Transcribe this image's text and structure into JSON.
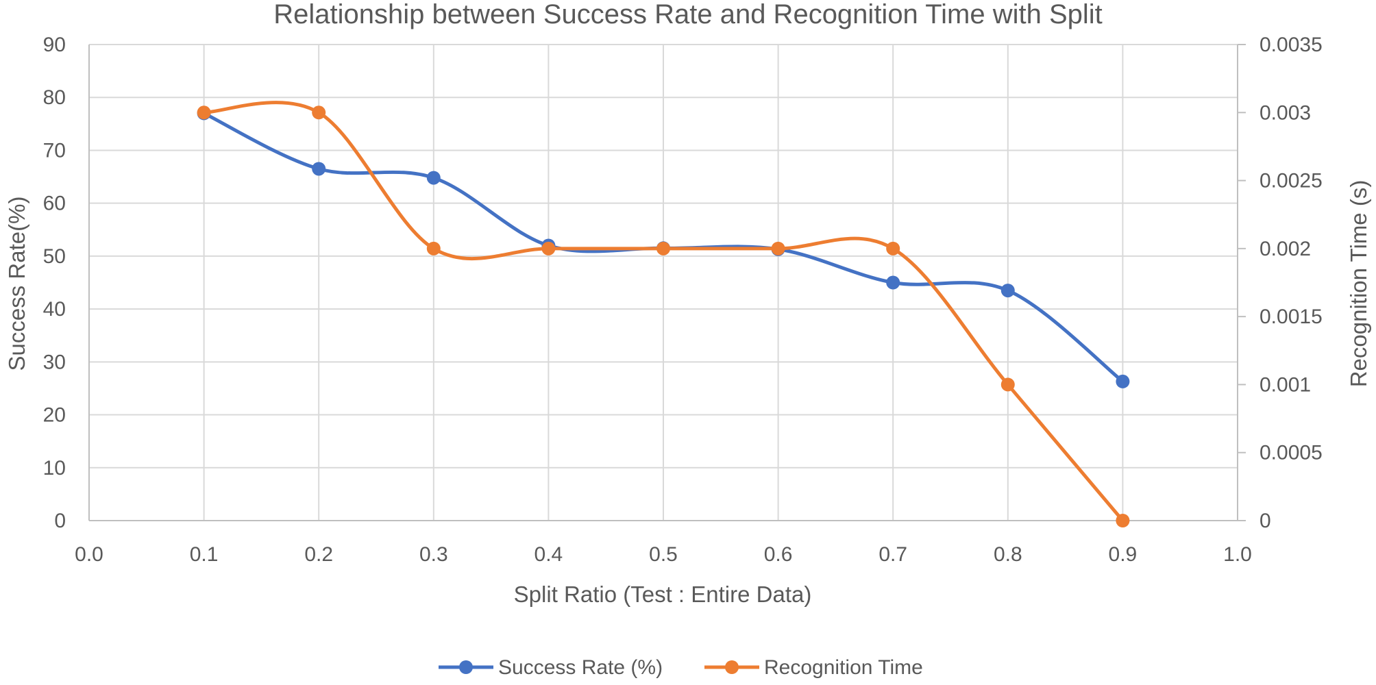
{
  "chart_data": {
    "type": "line",
    "title": "Relationship between Success Rate and Recognition Time with Split",
    "xlabel": "Split Ratio (Test : Entire Data)",
    "ylabel": "Success Rate(%)",
    "y2label": "Recognition Time (s)",
    "x": [
      0.1,
      0.2,
      0.3,
      0.4,
      0.5,
      0.6,
      0.7,
      0.8,
      0.9
    ],
    "xlim": [
      0.0,
      1.0
    ],
    "ylim": [
      0,
      90
    ],
    "y2lim": [
      0,
      0.0035
    ],
    "x_ticks": [
      "0.0",
      "0.1",
      "0.2",
      "0.3",
      "0.4",
      "0.5",
      "0.6",
      "0.7",
      "0.8",
      "0.9",
      "1.0"
    ],
    "y_ticks": [
      "0",
      "10",
      "20",
      "30",
      "40",
      "50",
      "60",
      "70",
      "80",
      "90"
    ],
    "y2_ticks": [
      "0",
      "0.0005",
      "0.001",
      "0.0015",
      "0.002",
      "0.0025",
      "0.003",
      "0.0035"
    ],
    "grid": true,
    "smooth": true,
    "legend_position": "bottom",
    "series": [
      {
        "name": "Success Rate (%)",
        "axis": "left",
        "color": "#4472C4",
        "values": [
          77,
          66.5,
          64.8,
          52,
          51.5,
          51.3,
          45,
          43.5,
          26.3
        ]
      },
      {
        "name": "Recognition Time",
        "axis": "right",
        "color": "#ED7D31",
        "values": [
          0.003,
          0.003,
          0.002,
          0.002,
          0.002,
          0.002,
          0.002,
          0.001,
          0
        ]
      }
    ]
  }
}
